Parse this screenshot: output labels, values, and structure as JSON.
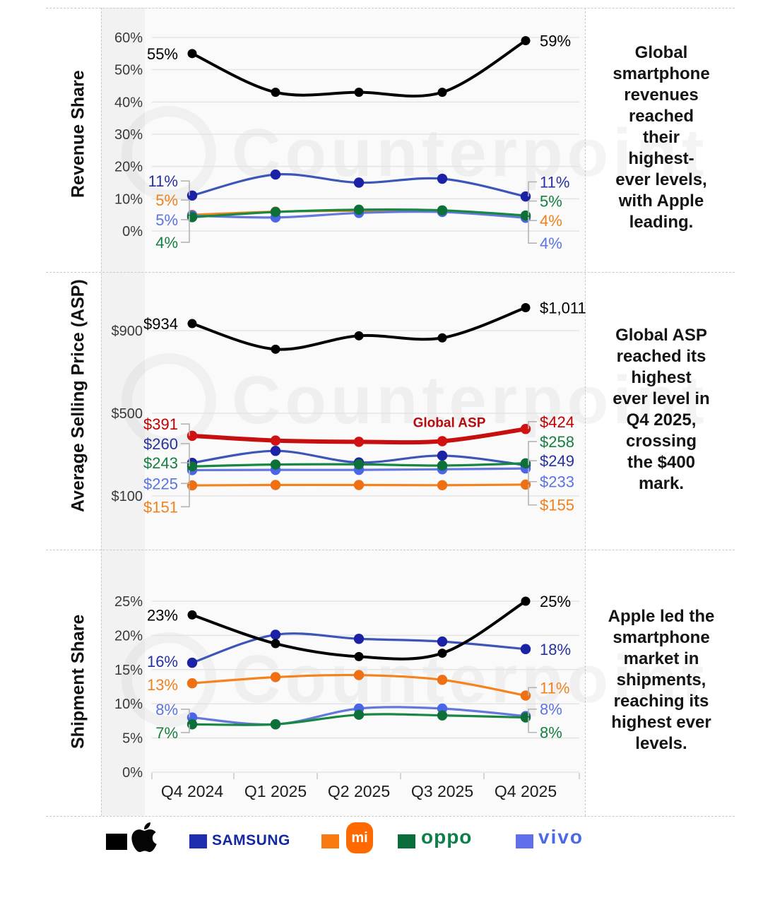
{
  "watermark": {
    "text": "Counterpoint"
  },
  "legend": {
    "items": [
      {
        "name": "Apple",
        "swatch_color": "#000000",
        "label": ""
      },
      {
        "name": "Samsung",
        "swatch_color": "#1f2db0",
        "label": "SAMSUNG",
        "wordmark_color": "#1428a0"
      },
      {
        "name": "Xiaomi",
        "swatch_color": "#f97a11",
        "label": "mi",
        "badge_color": "#ff6900",
        "badge_text_color": "#ffffff"
      },
      {
        "name": "OPPO",
        "swatch_color": "#0b6c3c",
        "label": "oppo",
        "wordmark_color": "#0e7f48"
      },
      {
        "name": "vivo",
        "swatch_color": "#5f70ea",
        "label": "vivo",
        "wordmark_color": "#4b69e6"
      }
    ]
  },
  "chart_data": [
    {
      "type": "line",
      "ylabel": "Revenue Share",
      "caption": "Global\nsmartphone\nrevenues\nreached\ntheir\nhighest-\never levels,\nwith Apple\nleading.",
      "categories": [
        "Q4 2024",
        "Q1 2025",
        "Q2 2025",
        "Q3 2025",
        "Q4 2025"
      ],
      "ylim": [
        0,
        60
      ],
      "grid": true,
      "legend_position": "bottom",
      "yticks": [
        {
          "label": "0%",
          "value": 0
        },
        {
          "label": "10%",
          "value": 10
        },
        {
          "label": "20%",
          "value": 20
        },
        {
          "label": "30%",
          "value": 30
        },
        {
          "label": "40%",
          "value": 40
        },
        {
          "label": "50%",
          "value": 50
        },
        {
          "label": "60%",
          "value": 60
        }
      ],
      "series": [
        {
          "name": "Apple",
          "color": "#000000",
          "values": [
            55,
            43,
            43,
            43,
            59
          ],
          "start_label": "55%",
          "end_label": "59%"
        },
        {
          "name": "Samsung",
          "color": "#26329f",
          "line_color": "#3b55b8",
          "dot_color": "#1c22a6",
          "values": [
            11,
            17.5,
            15,
            16.2,
            10.7
          ],
          "start_label": "11%",
          "end_label": "11%"
        },
        {
          "name": "Xiaomi",
          "color": "#ef821e",
          "line_color": "#f5831d",
          "dot_color": "#ee7012",
          "values": [
            5,
            6,
            6.3,
            6.2,
            4.4
          ],
          "start_label": "5%",
          "end_label": "4%"
        },
        {
          "name": "vivo",
          "color": "#5b74e0",
          "line_color": "#6377dd",
          "dot_color": "#4a65e8",
          "values": [
            4.8,
            4.2,
            5.6,
            5.9,
            4.1
          ],
          "start_label": "5%",
          "end_label": "4%"
        },
        {
          "name": "OPPO",
          "color": "#15803f",
          "line_color": "#178742",
          "dot_color": "#0d7038",
          "values": [
            4.3,
            5.9,
            6.6,
            6.4,
            4.8
          ],
          "start_label": "4%",
          "end_label": "5%"
        }
      ]
    },
    {
      "type": "line",
      "ylabel": "Average Selling Price (ASP)",
      "caption": "Global ASP\nreached its\nhighest\never level in\nQ4 2025,\ncrossing\nthe $400\nmark.",
      "categories": [
        "Q4 2024",
        "Q1 2025",
        "Q2 2025",
        "Q3 2025",
        "Q4 2025"
      ],
      "ylim": [
        100,
        900
      ],
      "grid": true,
      "annotation": {
        "text": "Global ASP",
        "color": "#b50d0d"
      },
      "yticks": [
        {
          "label": "$100",
          "value": 100
        },
        {
          "label": "$500",
          "value": 500
        },
        {
          "label": "$900",
          "value": 900
        }
      ],
      "series": [
        {
          "name": "Apple",
          "color": "#000000",
          "values": [
            934,
            810,
            875,
            865,
            1011
          ],
          "start_label": "$934",
          "end_label": "$1,011"
        },
        {
          "name": "Samsung",
          "color": "#26329f",
          "line_color": "#3b55b8",
          "dot_color": "#1c22a6",
          "values": [
            260,
            318,
            262,
            295,
            249
          ],
          "start_label": "$260",
          "end_label": "$249"
        },
        {
          "name": "Xiaomi",
          "color": "#ef821e",
          "line_color": "#f5831d",
          "dot_color": "#ee7012",
          "values": [
            151,
            153,
            153,
            152,
            155
          ],
          "start_label": "$151",
          "end_label": "$155"
        },
        {
          "name": "vivo",
          "color": "#5b74e0",
          "line_color": "#6377dd",
          "dot_color": "#4a65e8",
          "values": [
            225,
            226,
            226,
            229,
            233
          ],
          "start_label": "$225",
          "end_label": "$233"
        },
        {
          "name": "OPPO",
          "color": "#15803f",
          "line_color": "#178742",
          "dot_color": "#0d7038",
          "values": [
            243,
            252,
            253,
            247,
            258
          ],
          "start_label": "$243",
          "end_label": "$258"
        },
        {
          "name": "Global ASP",
          "color": "#c00000",
          "line_color": "#c70f0f",
          "dot_color": "#d01212",
          "values": [
            391,
            368,
            362,
            365,
            424
          ],
          "start_label": "$391",
          "end_label": "$424"
        }
      ]
    },
    {
      "type": "line",
      "ylabel": "Shipment Share",
      "caption": "Apple led the\nsmartphone\nmarket in\nshipments,\nreaching its\nhighest ever\nlevels.",
      "categories": [
        "Q4 2024",
        "Q1 2025",
        "Q2 2025",
        "Q3 2025",
        "Q4 2025"
      ],
      "ylim": [
        0,
        25
      ],
      "grid": true,
      "show_x_labels": true,
      "yticks": [
        {
          "label": "0%",
          "value": 0
        },
        {
          "label": "5%",
          "value": 5
        },
        {
          "label": "10%",
          "value": 10
        },
        {
          "label": "15%",
          "value": 15
        },
        {
          "label": "20%",
          "value": 20
        },
        {
          "label": "25%",
          "value": 25
        }
      ],
      "series": [
        {
          "name": "Apple",
          "color": "#000000",
          "values": [
            23,
            18.8,
            16.9,
            17.4,
            25
          ],
          "start_label": "23%",
          "end_label": "25%"
        },
        {
          "name": "Samsung",
          "color": "#26329f",
          "line_color": "#3b55b8",
          "dot_color": "#1c22a6",
          "values": [
            16,
            20.1,
            19.5,
            19.1,
            18
          ],
          "start_label": "16%",
          "end_label": "18%"
        },
        {
          "name": "Xiaomi",
          "color": "#ef821e",
          "line_color": "#f5831d",
          "dot_color": "#ee7012",
          "values": [
            13,
            13.9,
            14.2,
            13.5,
            11.2
          ],
          "start_label": "13%",
          "end_label": "11%"
        },
        {
          "name": "vivo",
          "color": "#5b74e0",
          "line_color": "#6377dd",
          "dot_color": "#4a65e8",
          "values": [
            8,
            7,
            9.3,
            9.3,
            8.2
          ],
          "start_label": "8%",
          "end_label": "8%"
        },
        {
          "name": "OPPO",
          "color": "#15803f",
          "line_color": "#178742",
          "dot_color": "#0d7038",
          "values": [
            7,
            7,
            8.4,
            8.3,
            8.0
          ],
          "start_label": "7%",
          "end_label": "8%"
        }
      ]
    }
  ]
}
